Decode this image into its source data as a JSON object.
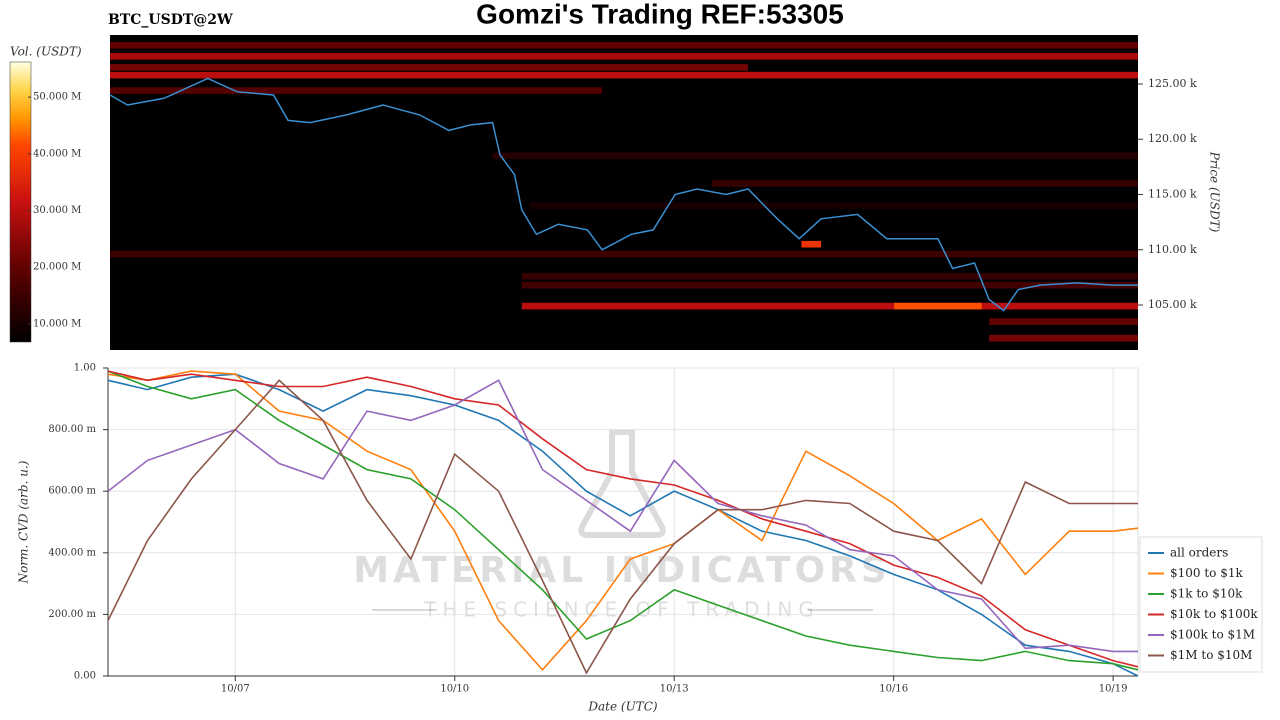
{
  "chart_data": [
    {
      "type": "heatmap",
      "title": "Gomzi's Trading REF:53305",
      "label": "BTC_USDT@2W",
      "ylabel": "Price (USDT)",
      "xlim": [
        5.26,
        19.34
      ],
      "ylim": [
        100.93,
        129.43
      ],
      "yticks": [
        {
          "value": 105,
          "label": "105.00 k"
        },
        {
          "value": 110,
          "label": "110.00 k"
        },
        {
          "value": 115,
          "label": "115.00 k"
        },
        {
          "value": 120,
          "label": "120.00 k"
        },
        {
          "value": 125,
          "label": "125.00 k"
        }
      ],
      "colorbar": {
        "label": "Vol. (USDT)",
        "lim": [
          6.8,
          56.2
        ],
        "ticks": [
          {
            "value": 10,
            "label": "10.000 M"
          },
          {
            "value": 20,
            "label": "20.000 M"
          },
          {
            "value": 30,
            "label": "30.000 M"
          },
          {
            "value": 40,
            "label": "40.000 M"
          },
          {
            "value": 50,
            "label": "50.000 M"
          }
        ]
      },
      "levels": [
        {
          "x0": 5.26,
          "x1": 19.34,
          "price": 128.5,
          "volume": 20
        },
        {
          "x0": 5.26,
          "x1": 19.34,
          "price": 127.5,
          "volume": 28
        },
        {
          "x0": 5.26,
          "x1": 14.0,
          "price": 126.5,
          "volume": 22
        },
        {
          "x0": 5.26,
          "x1": 19.34,
          "price": 125.8,
          "volume": 30
        },
        {
          "x0": 5.26,
          "x1": 12.0,
          "price": 124.4,
          "volume": 18
        },
        {
          "x0": 10.5,
          "x1": 19.34,
          "price": 118.5,
          "volume": 12
        },
        {
          "x0": 13.5,
          "x1": 19.34,
          "price": 116.0,
          "volume": 14
        },
        {
          "x0": 11.0,
          "x1": 19.34,
          "price": 114.0,
          "volume": 10
        },
        {
          "x0": 5.26,
          "x1": 19.34,
          "price": 109.6,
          "volume": 15
        },
        {
          "x0": 14.73,
          "x1": 15.0,
          "price": 110.5,
          "volume": 38
        },
        {
          "x0": 10.9,
          "x1": 19.34,
          "price": 107.6,
          "volume": 14
        },
        {
          "x0": 10.9,
          "x1": 19.34,
          "price": 106.8,
          "volume": 16
        },
        {
          "x0": 10.9,
          "x1": 19.34,
          "price": 104.9,
          "volume": 30
        },
        {
          "x0": 16.0,
          "x1": 17.2,
          "price": 104.9,
          "volume": 42
        },
        {
          "x0": 17.3,
          "x1": 19.34,
          "price": 103.5,
          "volume": 20
        },
        {
          "x0": 17.3,
          "x1": 19.34,
          "price": 102.0,
          "volume": 22
        }
      ],
      "price_line": {
        "color": "#3a8fd0",
        "x": [
          5.26,
          5.5,
          6.0,
          6.6,
          7.0,
          7.5,
          7.7,
          8.0,
          8.5,
          9.0,
          9.5,
          9.9,
          10.2,
          10.5,
          10.6,
          10.8,
          10.9,
          11.1,
          11.4,
          11.8,
          12.0,
          12.4,
          12.7,
          13.0,
          13.3,
          13.7,
          14.0,
          14.4,
          14.7,
          15.0,
          15.5,
          15.9,
          16.4,
          16.6,
          16.8,
          17.1,
          17.3,
          17.5,
          17.7,
          18.0,
          18.5,
          19.0,
          19.34
        ],
        "values": [
          124.0,
          123.1,
          123.7,
          125.5,
          124.3,
          124.0,
          121.7,
          121.5,
          122.2,
          123.1,
          122.2,
          120.8,
          121.3,
          121.5,
          118.6,
          116.8,
          113.6,
          111.4,
          112.3,
          111.8,
          110.0,
          111.4,
          111.8,
          115.0,
          115.5,
          115.0,
          115.5,
          112.8,
          111.0,
          112.8,
          113.2,
          111.0,
          111.0,
          111.0,
          108.3,
          108.8,
          105.5,
          104.5,
          106.4,
          106.8,
          107.0,
          106.8,
          106.8
        ]
      }
    },
    {
      "type": "line",
      "xlabel": "Date (UTC)",
      "ylabel": "Norm. CVD (arb. u.)",
      "watermark": [
        "MATERIAL INDICATORS",
        "THE SCIENCE OF TRADING"
      ],
      "legend": "right",
      "grid": true,
      "xlim": [
        5.26,
        19.34
      ],
      "xticks": [
        {
          "value": 7,
          "label": "10/07"
        },
        {
          "value": 10,
          "label": "10/10"
        },
        {
          "value": 13,
          "label": "10/13"
        },
        {
          "value": 16,
          "label": "10/16"
        },
        {
          "value": 19,
          "label": "10/19"
        }
      ],
      "ylim": [
        0,
        1
      ],
      "yticks": [
        {
          "value": 0,
          "label": "0.00"
        },
        {
          "value": 0.2,
          "label": "200.00 m"
        },
        {
          "value": 0.4,
          "label": "400.00 m"
        },
        {
          "value": 0.6,
          "label": "600.00 m"
        },
        {
          "value": 0.8,
          "label": "800.00 m"
        },
        {
          "value": 1,
          "label": "1.00"
        }
      ],
      "x": [
        5.26,
        5.8,
        6.4,
        7.0,
        7.6,
        8.2,
        8.8,
        9.4,
        10.0,
        10.6,
        11.2,
        11.8,
        12.4,
        13.0,
        13.6,
        14.2,
        14.8,
        15.4,
        16.0,
        16.6,
        17.2,
        17.8,
        18.4,
        19.0,
        19.34
      ],
      "series": [
        {
          "name": "all orders",
          "color": "#1f77b4",
          "values": [
            0.96,
            0.93,
            0.97,
            0.98,
            0.93,
            0.86,
            0.93,
            0.91,
            0.88,
            0.83,
            0.73,
            0.6,
            0.52,
            0.6,
            0.54,
            0.47,
            0.44,
            0.39,
            0.33,
            0.28,
            0.2,
            0.1,
            0.08,
            0.04,
            0.0
          ]
        },
        {
          "name": "$100 to $1k",
          "color": "#ff7f0e",
          "values": [
            0.98,
            0.96,
            0.99,
            0.98,
            0.86,
            0.83,
            0.73,
            0.67,
            0.47,
            0.18,
            0.02,
            0.18,
            0.38,
            0.43,
            0.54,
            0.44,
            0.73,
            0.65,
            0.56,
            0.44,
            0.51,
            0.33,
            0.47,
            0.47,
            0.48
          ]
        },
        {
          "name": "$1k to $10k",
          "color": "#2ca02c",
          "values": [
            0.99,
            0.94,
            0.9,
            0.93,
            0.83,
            0.75,
            0.67,
            0.64,
            0.54,
            0.41,
            0.28,
            0.12,
            0.18,
            0.28,
            0.23,
            0.18,
            0.13,
            0.1,
            0.08,
            0.06,
            0.05,
            0.08,
            0.05,
            0.04,
            0.02
          ]
        },
        {
          "name": "$10k to $100k",
          "color": "#d62728",
          "values": [
            0.99,
            0.96,
            0.98,
            0.96,
            0.94,
            0.94,
            0.97,
            0.94,
            0.9,
            0.88,
            0.77,
            0.67,
            0.64,
            0.62,
            0.57,
            0.51,
            0.47,
            0.43,
            0.36,
            0.32,
            0.26,
            0.15,
            0.1,
            0.05,
            0.03
          ]
        },
        {
          "name": "$100k to $1M",
          "color": "#9467bd",
          "values": [
            0.6,
            0.7,
            0.75,
            0.8,
            0.69,
            0.64,
            0.86,
            0.83,
            0.88,
            0.96,
            0.67,
            0.57,
            0.47,
            0.7,
            0.56,
            0.52,
            0.49,
            0.41,
            0.39,
            0.28,
            0.25,
            0.09,
            0.1,
            0.08,
            0.08
          ]
        },
        {
          "name": "$1M to $10M",
          "color": "#8c564b",
          "values": [
            0.18,
            0.44,
            0.64,
            0.8,
            0.96,
            0.83,
            0.57,
            0.38,
            0.72,
            0.6,
            0.31,
            0.01,
            0.25,
            0.43,
            0.54,
            0.54,
            0.57,
            0.56,
            0.47,
            0.44,
            0.3,
            0.63,
            0.56,
            0.56,
            0.56
          ]
        }
      ]
    }
  ]
}
